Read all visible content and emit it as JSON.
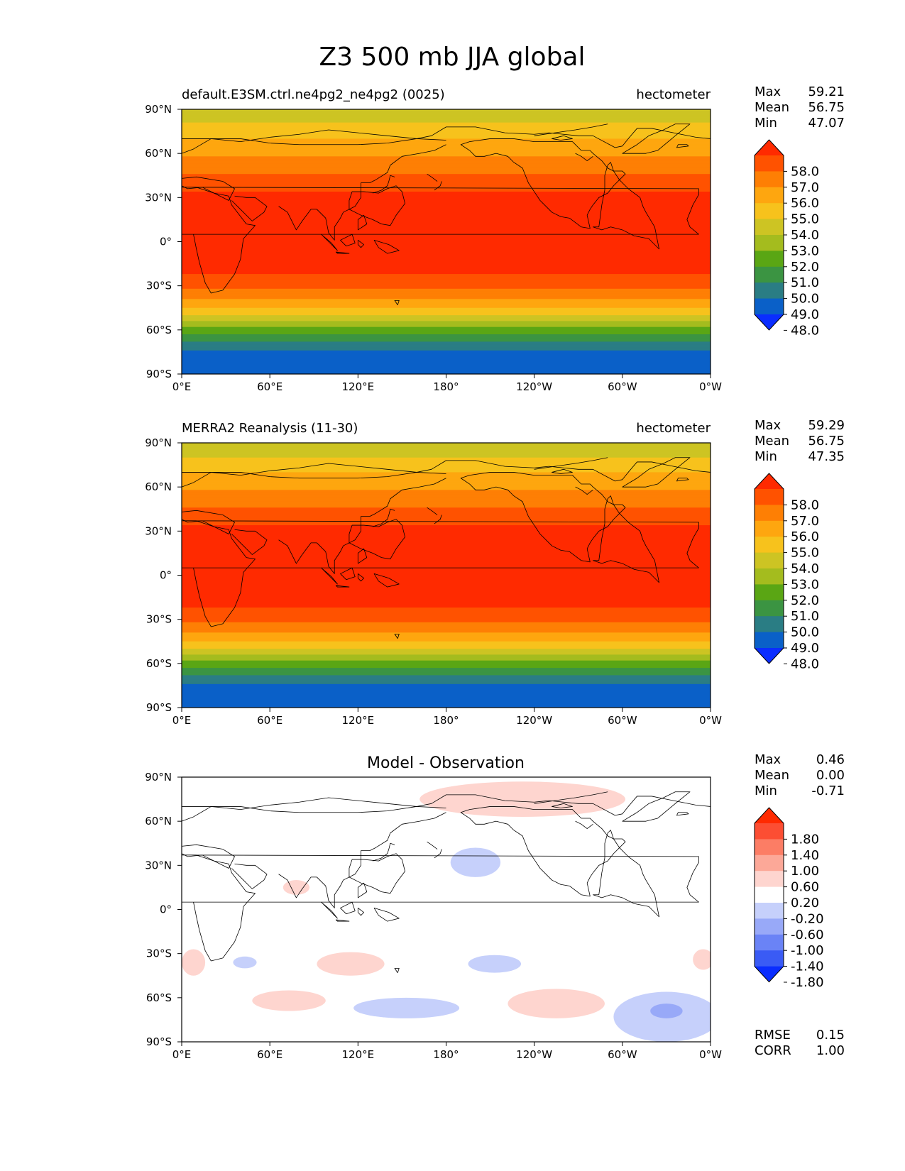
{
  "figure": {
    "title": "Z3 500 mb JJA global"
  },
  "colors": {
    "field_levels": [
      "#0a2dff",
      "#0a60c8",
      "#2a7d84",
      "#3b9442",
      "#5aa614",
      "#a4bc1e",
      "#cdc423",
      "#f7c21c",
      "#fea60f",
      "#fe7f04",
      "#ff5200",
      "#ff2a00"
    ],
    "diff_levels": [
      "#0a2dff",
      "#3a5bf5",
      "#6a83f6",
      "#98a9f8",
      "#c6d0fb",
      "#ffffff",
      "#fed5cf",
      "#fca898",
      "#fc7d65",
      "#fc4e33",
      "#ff2a00"
    ]
  },
  "chart_data": [
    {
      "type": "heatmap",
      "title": "default.E3SM.ctrl.ne4pg2_ne4pg2 (0025)",
      "units": "hectometer",
      "stats": {
        "labels": [
          "Max",
          "Mean",
          "Min"
        ],
        "values": [
          "59.21",
          "56.75",
          "47.07"
        ]
      },
      "x_ticks": [
        "0°E",
        "60°E",
        "120°E",
        "180°",
        "120°W",
        "60°W",
        "0°W"
      ],
      "y_ticks": [
        "90°N",
        "60°N",
        "30°N",
        "0°",
        "30°S",
        "60°S",
        "90°S"
      ],
      "xlim": [
        0,
        360
      ],
      "ylim": [
        -90,
        90
      ],
      "colorbar": {
        "ticks": [
          "58.0",
          "57.0",
          "56.0",
          "55.0",
          "54.0",
          "53.0",
          "52.0",
          "51.0",
          "50.0",
          "49.0",
          "48.0"
        ],
        "extend": "both"
      },
      "zonal_profile": {
        "lat": [
          90,
          80,
          70,
          60,
          50,
          40,
          30,
          20,
          0,
          -20,
          -25,
          -30,
          -35,
          -40,
          -45,
          -50,
          -55,
          -60,
          -65,
          -70,
          -75,
          -80,
          -90
        ],
        "value": [
          53.2,
          54.1,
          55.0,
          55.8,
          56.6,
          57.5,
          58.4,
          58.6,
          58.6,
          58.3,
          57.6,
          57.2,
          56.6,
          55.8,
          55.0,
          54.0,
          52.6,
          51.5,
          50.6,
          49.5,
          48.9,
          48.6,
          48.6
        ]
      }
    },
    {
      "type": "heatmap",
      "title": "MERRA2 Reanalysis (11-30)",
      "units": "hectometer",
      "stats": {
        "labels": [
          "Max",
          "Mean",
          "Min"
        ],
        "values": [
          "59.29",
          "56.75",
          "47.35"
        ]
      },
      "x_ticks": [
        "0°E",
        "60°E",
        "120°E",
        "180°",
        "120°W",
        "60°W",
        "0°W"
      ],
      "y_ticks": [
        "90°N",
        "60°N",
        "30°N",
        "0°",
        "30°S",
        "60°S",
        "90°S"
      ],
      "xlim": [
        0,
        360
      ],
      "ylim": [
        -90,
        90
      ],
      "colorbar": {
        "ticks": [
          "58.0",
          "57.0",
          "56.0",
          "55.0",
          "54.0",
          "53.0",
          "52.0",
          "51.0",
          "50.0",
          "49.0",
          "48.0"
        ],
        "extend": "both"
      },
      "zonal_profile": {
        "lat": [
          90,
          80,
          70,
          60,
          50,
          40,
          30,
          20,
          0,
          -20,
          -25,
          -30,
          -35,
          -40,
          -45,
          -50,
          -55,
          -60,
          -65,
          -70,
          -75,
          -80,
          -90
        ],
        "value": [
          53.1,
          54.0,
          55.0,
          55.8,
          56.6,
          57.5,
          58.4,
          58.6,
          58.6,
          58.3,
          57.6,
          57.2,
          56.6,
          55.8,
          55.0,
          54.0,
          52.6,
          51.5,
          50.6,
          49.5,
          48.9,
          48.6,
          48.6
        ]
      }
    },
    {
      "type": "heatmap",
      "title": "Model - Observation",
      "units": "",
      "stats": {
        "labels": [
          "Max",
          "Mean",
          "Min"
        ],
        "values": [
          "0.46",
          "0.00",
          "-0.71"
        ]
      },
      "metrics": {
        "labels": [
          "RMSE",
          "CORR"
        ],
        "values": [
          "0.15",
          "1.00"
        ]
      },
      "x_ticks": [
        "0°E",
        "60°E",
        "120°E",
        "180°",
        "120°W",
        "60°W",
        "0°W"
      ],
      "y_ticks": [
        "90°N",
        "60°N",
        "30°N",
        "0°",
        "30°S",
        "60°S",
        "90°S"
      ],
      "xlim": [
        0,
        360
      ],
      "ylim": [
        -90,
        90
      ],
      "colorbar": {
        "ticks": [
          "1.80",
          "1.40",
          "1.00",
          "0.60",
          "0.20",
          "-0.20",
          "-0.60",
          "-1.00",
          "-1.40",
          "-1.80"
        ],
        "extend": "both"
      },
      "anomalies": [
        {
          "lon": 232,
          "lat": 75,
          "dlon": 70,
          "dlat": 12,
          "value": 0.4
        },
        {
          "lon": 200,
          "lat": 32,
          "dlon": 17,
          "dlat": 10,
          "value": -0.4
        },
        {
          "lon": 78,
          "lat": 15,
          "dlon": 9,
          "dlat": 5,
          "value": 0.4
        },
        {
          "lon": 43,
          "lat": -36,
          "dlon": 8,
          "dlat": 4,
          "value": -0.4
        },
        {
          "lon": 115,
          "lat": -37,
          "dlon": 23,
          "dlat": 8,
          "value": 0.4
        },
        {
          "lon": 213,
          "lat": -37,
          "dlon": 18,
          "dlat": 6,
          "value": -0.4
        },
        {
          "lon": 8,
          "lat": -36,
          "dlon": 8,
          "dlat": 9,
          "value": 0.4
        },
        {
          "lon": 355,
          "lat": -34,
          "dlon": 7,
          "dlat": 7,
          "value": 0.4
        },
        {
          "lon": 73,
          "lat": -62,
          "dlon": 25,
          "dlat": 7,
          "value": 0.4
        },
        {
          "lon": 153,
          "lat": -67,
          "dlon": 36,
          "dlat": 7,
          "value": -0.4
        },
        {
          "lon": 255,
          "lat": -64,
          "dlon": 33,
          "dlat": 10,
          "value": 0.4
        },
        {
          "lon": 330,
          "lat": -73,
          "dlon": 36,
          "dlat": 17,
          "value": -0.4
        },
        {
          "lon": 330,
          "lat": -69,
          "dlon": 11,
          "dlat": 5,
          "value": -0.8
        }
      ]
    }
  ]
}
